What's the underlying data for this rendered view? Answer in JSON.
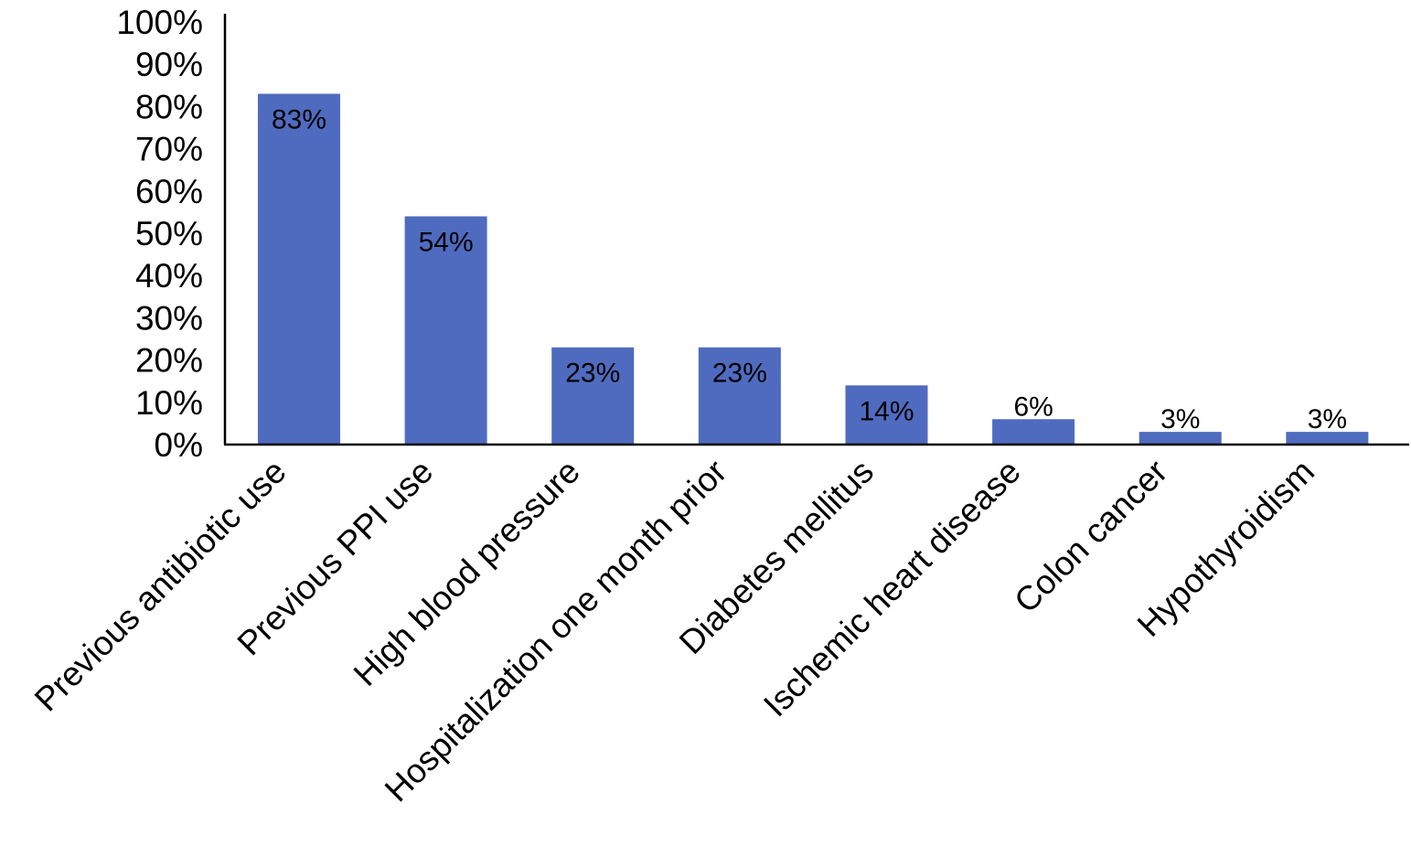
{
  "chart_data": {
    "type": "bar",
    "title": "",
    "xlabel": "",
    "ylabel": "",
    "ylim": [
      0,
      100
    ],
    "y_ticks": [
      "0%",
      "10%",
      "20%",
      "30%",
      "40%",
      "50%",
      "60%",
      "70%",
      "80%",
      "90%",
      "100%"
    ],
    "grid": false,
    "legend": "none",
    "bar_color": "#4f6bbf",
    "categories": [
      "Previous antibiotic use",
      "Previous PPI use",
      "High blood pressure",
      "Hospitalization one month prior",
      "Diabetes mellitus",
      "Ischemic heart disease",
      "Colon cancer",
      "Hypothyroidism"
    ],
    "values": [
      83,
      54,
      23,
      23,
      14,
      6,
      3,
      3
    ],
    "value_labels": [
      "83%",
      "54%",
      "23%",
      "23%",
      "14%",
      "6%",
      "3%",
      "3%"
    ]
  }
}
